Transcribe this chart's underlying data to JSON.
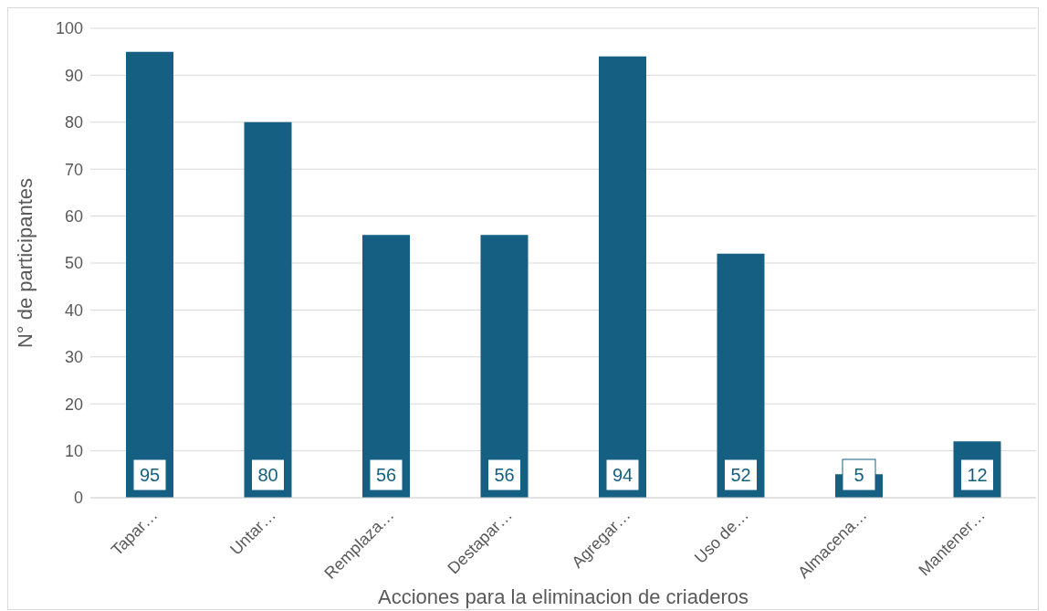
{
  "chart_data": {
    "type": "bar",
    "xlabel": "Acciones para la eliminacion de criaderos",
    "ylabel": "N° de participantes",
    "categories": [
      "Tapar…",
      "Untar…",
      "Remplaza…",
      "Destapar…",
      "Agregar…",
      "Uso de…",
      "Almacena…",
      "Mantener…"
    ],
    "values": [
      95,
      80,
      56,
      56,
      94,
      52,
      5,
      12
    ],
    "color": "#156082",
    "ylim": [
      0,
      100
    ],
    "yticks": [
      0,
      10,
      20,
      30,
      40,
      50,
      60,
      70,
      80,
      90,
      100
    ],
    "grid": "y",
    "data_labels": true
  }
}
